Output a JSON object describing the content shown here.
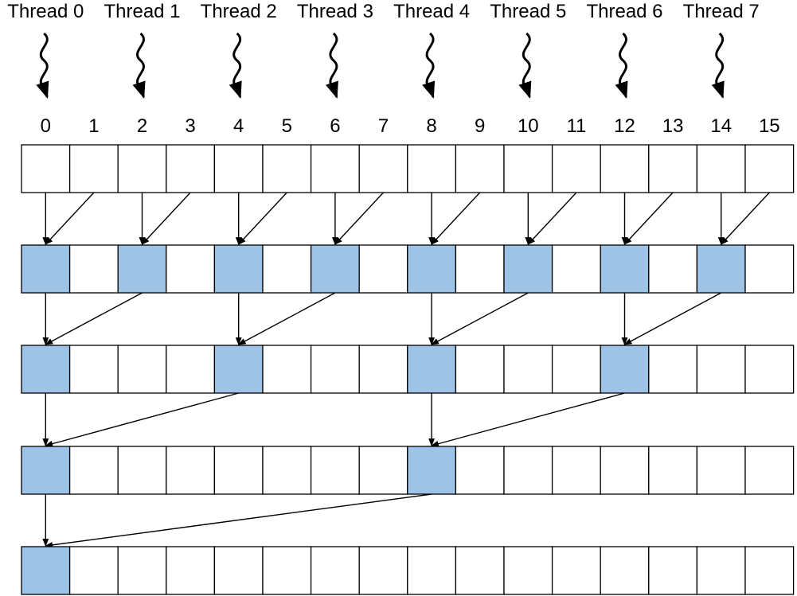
{
  "thread_labels": [
    "Thread 0",
    "Thread 1",
    "Thread 2",
    "Thread 3",
    "Thread 4",
    "Thread 5",
    "Thread 6",
    "Thread 7"
  ],
  "index_labels": [
    "0",
    "1",
    "2",
    "3",
    "4",
    "5",
    "6",
    "7",
    "8",
    "9",
    "10",
    "11",
    "12",
    "13",
    "14",
    "15"
  ],
  "colors": {
    "highlight": "#9dc3e6",
    "cell": "#ffffff",
    "stroke": "#000000"
  },
  "rows": [
    {
      "highlighted": []
    },
    {
      "highlighted": [
        0,
        2,
        4,
        6,
        8,
        10,
        12,
        14
      ]
    },
    {
      "highlighted": [
        0,
        4,
        8,
        12
      ]
    },
    {
      "highlighted": [
        0,
        8
      ]
    },
    {
      "highlighted": [
        0
      ]
    }
  ],
  "reductions": [
    [
      [
        0,
        0
      ],
      [
        1,
        0
      ],
      [
        2,
        2
      ],
      [
        3,
        2
      ],
      [
        4,
        4
      ],
      [
        5,
        4
      ],
      [
        6,
        6
      ],
      [
        7,
        6
      ],
      [
        8,
        8
      ],
      [
        9,
        8
      ],
      [
        10,
        10
      ],
      [
        11,
        10
      ],
      [
        12,
        12
      ],
      [
        13,
        12
      ],
      [
        14,
        14
      ],
      [
        15,
        14
      ]
    ],
    [
      [
        0,
        0
      ],
      [
        2,
        0
      ],
      [
        4,
        4
      ],
      [
        6,
        4
      ],
      [
        8,
        8
      ],
      [
        10,
        8
      ],
      [
        12,
        12
      ],
      [
        14,
        12
      ]
    ],
    [
      [
        0,
        0
      ],
      [
        4,
        0
      ],
      [
        8,
        8
      ],
      [
        12,
        8
      ]
    ],
    [
      [
        0,
        0
      ],
      [
        8,
        0
      ]
    ]
  ]
}
